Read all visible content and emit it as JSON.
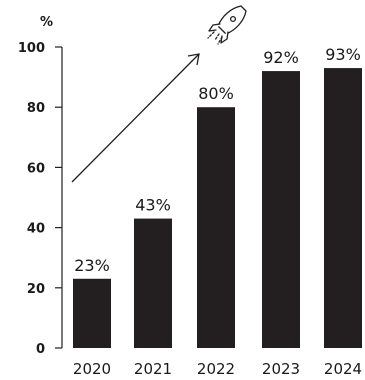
{
  "chart_data": {
    "type": "bar",
    "categories": [
      "2020",
      "2021",
      "2022",
      "2023",
      "2024"
    ],
    "values": [
      23,
      43,
      80,
      92,
      93
    ],
    "data_labels": [
      "23%",
      "43%",
      "80%",
      "92%",
      "93%"
    ],
    "ylabel": "%",
    "ylim": [
      0,
      100
    ],
    "yticks": [
      0,
      20,
      40,
      60,
      80,
      100
    ],
    "bar_color": "#231f20",
    "axis_color": "#231f20",
    "grid": false,
    "annotation_icon": "rocket-icon"
  }
}
